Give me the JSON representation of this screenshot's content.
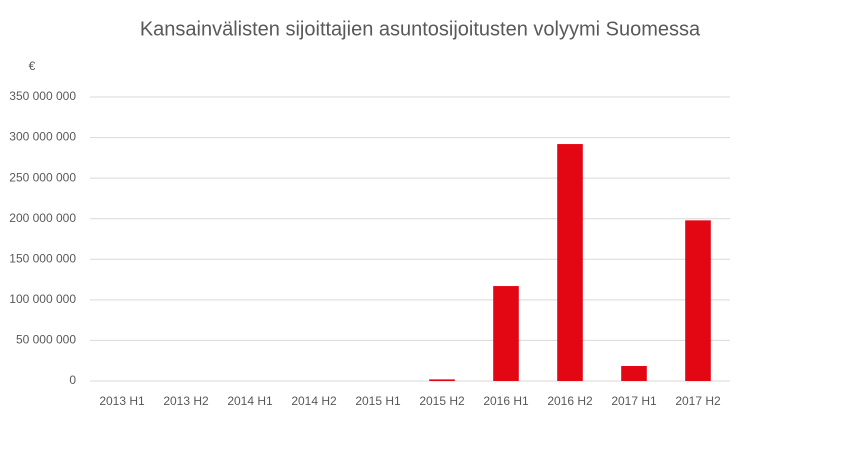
{
  "chart_data": {
    "type": "bar",
    "title": "Kansainvälisten sijoittajien asuntosijoitusten volyymi Suomessa",
    "y_label": "€",
    "categories": [
      "2013 H1",
      "2013 H2",
      "2014 H1",
      "2014 H2",
      "2015 H1",
      "2015 H2",
      "2016 H1",
      "2016 H2",
      "2017 H1",
      "2017 H2"
    ],
    "values": [
      0,
      0,
      0,
      0,
      0,
      2000000,
      117000000,
      292000000,
      18500000,
      198000000
    ],
    "color": "#e30613",
    "ylim": [
      0,
      350000000
    ],
    "yticks": [
      0,
      {
        "value": 50000000,
        "label": "50 000 000"
      },
      {
        "value": 100000000,
        "label": "100 000 000"
      },
      {
        "value": 150000000,
        "label": "150 000 000"
      },
      {
        "value": 200000000,
        "label": "200 000 000"
      },
      {
        "value": 250000000,
        "label": "250 000 000"
      },
      {
        "value": 300000000,
        "label": "300 000 000"
      },
      {
        "value": 350000000,
        "label": "350 000 000"
      }
    ],
    "grid": true
  }
}
